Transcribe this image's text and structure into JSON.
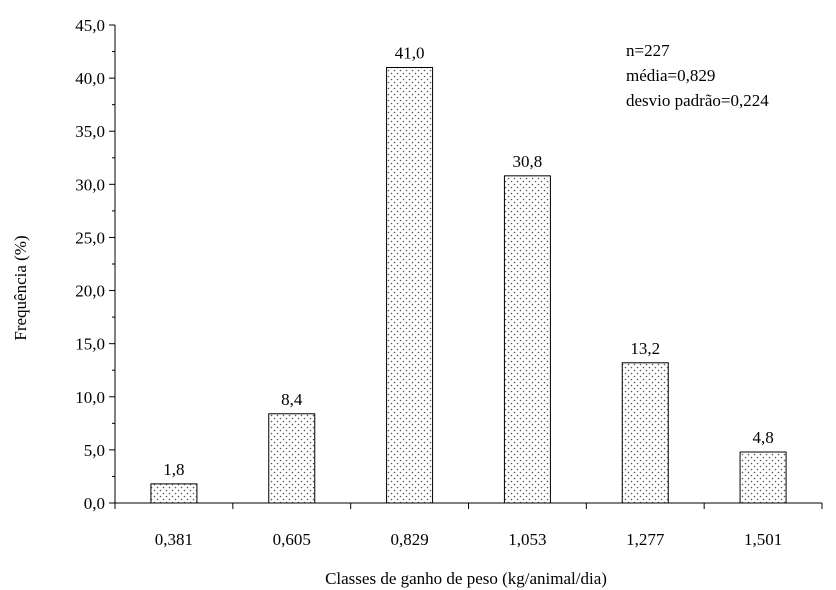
{
  "chart_data": {
    "type": "bar",
    "title": "",
    "xlabel": "Classes de ganho de peso (kg/animal/dia)",
    "ylabel": "Frequência (%)",
    "categories": [
      "0,381",
      "0,605",
      "0,829",
      "1,053",
      "1,277",
      "1,501"
    ],
    "values": [
      1.8,
      8.4,
      41.0,
      30.8,
      13.2,
      4.8
    ],
    "value_labels": [
      "1,8",
      "8,4",
      "41,0",
      "30,8",
      "13,2",
      "4,8"
    ],
    "ylim": [
      0,
      45
    ],
    "y_ticks": [
      0,
      5,
      10,
      15,
      20,
      25,
      30,
      35,
      40,
      45
    ],
    "y_tick_labels": [
      "0,0",
      "5,0",
      "10,0",
      "15,0",
      "20,0",
      "25,0",
      "30,0",
      "35,0",
      "40,0",
      "45,0"
    ],
    "grid": false,
    "bar_fill": "dotted",
    "annotations": [
      "n=227",
      "média=0,829",
      "desvio padrão=0,224"
    ]
  }
}
